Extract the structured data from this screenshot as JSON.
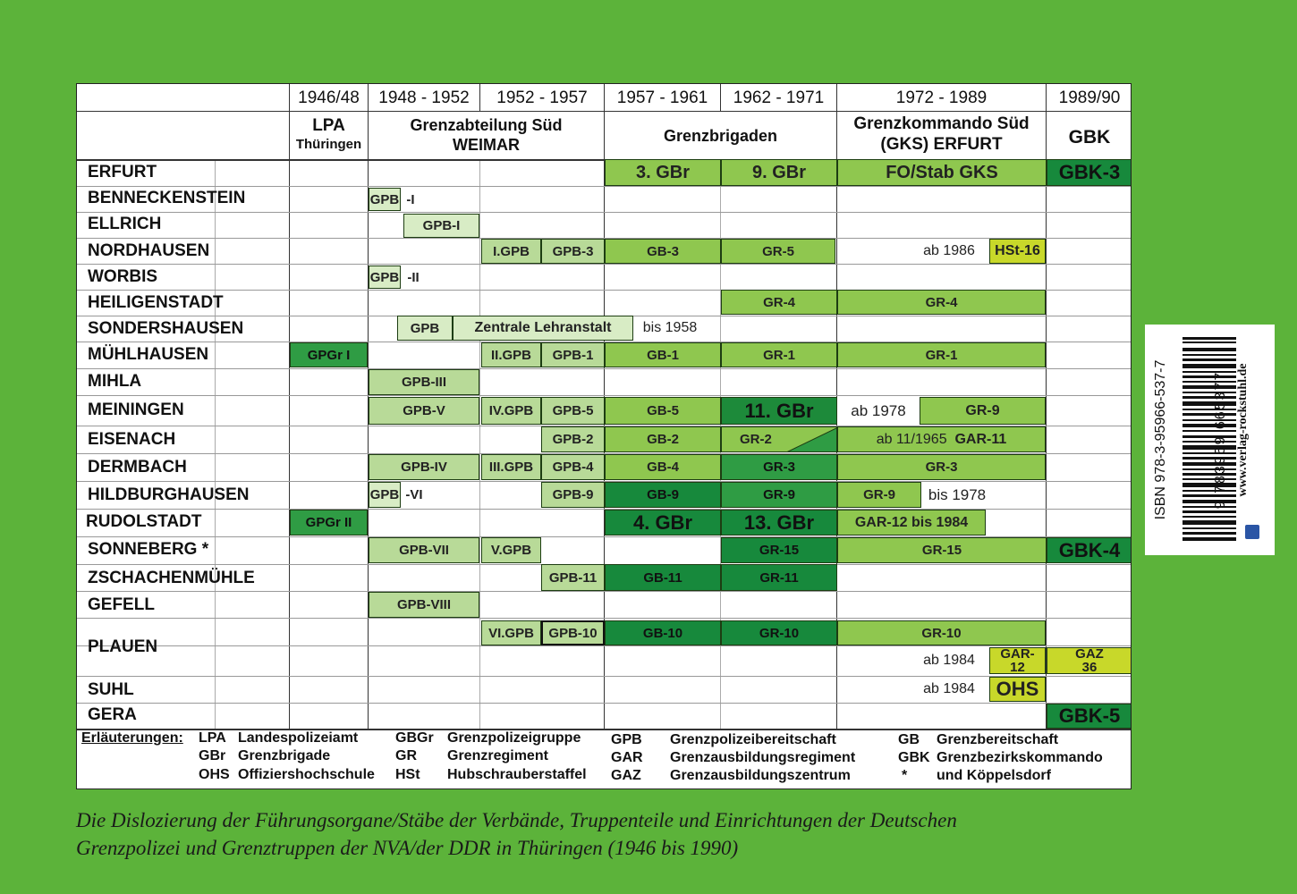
{
  "periods": [
    "1946/48",
    "1948 - 1952",
    "1952 - 1957",
    "1957 - 1961",
    "1962 - 1971",
    "1972 - 1989",
    "1989/90"
  ],
  "units": {
    "lpa": [
      "LPA",
      "Thüringen"
    ],
    "grenzabteilung": [
      "Grenzabteilung Süd",
      "WEIMAR"
    ],
    "grenzbrigaden": "Grenzbrigaden",
    "gks": [
      "Grenzkommando Süd",
      "(GKS) ERFURT"
    ],
    "gbk": "GBK"
  },
  "places": [
    "ERFURT",
    "BENNECKENSTEIN",
    "ELLRICH",
    "NORDHAUSEN",
    "WORBIS",
    "HEILIGENSTADT",
    "SONDERSHAUSEN",
    "MÜHLHAUSEN",
    "MIHLA",
    "MEININGEN",
    "EISENACH",
    "DERMBACH",
    "HILDBURGHAUSEN",
    "RUDOLSTADT",
    "SONNEBERG *",
    "ZSCHACHENMÜHLE",
    "GEFELL",
    "PLAUEN",
    "SUHL",
    "GERA"
  ],
  "cells": {
    "erfurt": [
      "3. GBr",
      "9. GBr",
      "FO/Stab GKS",
      "GBK-3"
    ],
    "benneckenstein": [
      "GPB",
      "-I"
    ],
    "ellrich": [
      "GPB-I"
    ],
    "nordhausen": [
      "I.GPB",
      "GPB-3",
      "GB-3",
      "GR-5",
      "ab 1986",
      "HSt-16"
    ],
    "worbis": [
      "GPB",
      "-II"
    ],
    "heiligenstadt": [
      "GR-4",
      "GR-4"
    ],
    "sondershausen": [
      "GPB",
      "Zentrale Lehranstalt",
      "bis 1958"
    ],
    "muehlhausen": [
      "GPGr I",
      "II.GPB",
      "GPB-1",
      "GB-1",
      "GR-1",
      "GR-1"
    ],
    "mihla": [
      "GPB-III"
    ],
    "meiningen": [
      "GPB-V",
      "IV.GPB",
      "GPB-5",
      "GB-5",
      "11. GBr",
      "ab 1978",
      "GR-9"
    ],
    "eisenach": [
      "GPB-2",
      "GB-2",
      "GR-2",
      "ab 11/1965",
      "GAR-11"
    ],
    "dermbach": [
      "GPB-IV",
      "III.GPB",
      "GPB-4",
      "GB-4",
      "GR-3",
      "GR-3"
    ],
    "hildburghausen": [
      "GPB",
      "-VI",
      "GPB-9",
      "GB-9",
      "GR-9",
      "GR-9",
      "bis 1978"
    ],
    "rudolstadt": [
      "GPGr II",
      "4. GBr",
      "13. GBr",
      "GAR-12 bis 1984"
    ],
    "sonneberg": [
      "GPB-VII",
      "V.GPB",
      "GR-15",
      "GR-15",
      "GBK-4"
    ],
    "zschachenmuehle": [
      "GPB-11",
      "GB-11",
      "GR-11"
    ],
    "gefell": [
      "GPB-VIII"
    ],
    "plauen": [
      "VI.GPB",
      "GPB-10",
      "GB-10",
      "GR-10",
      "GR-10",
      "ab 1984",
      "GAR-",
      "12",
      "GAZ",
      "36"
    ],
    "suhl": [
      "ab 1984",
      "OHS"
    ],
    "gera": [
      "GBK-5"
    ]
  },
  "legend": {
    "title": "Erläuterungen:",
    "col1": [
      [
        "LPA",
        "Landespolizeiamt"
      ],
      [
        "GBr",
        "Grenzbrigade"
      ],
      [
        "OHS",
        "Offiziershochschule"
      ]
    ],
    "col2": [
      [
        "GBGr",
        "Grenzpolizeigruppe"
      ],
      [
        "GR",
        "Grenzregiment"
      ],
      [
        "HSt",
        "Hubschrauberstaffel"
      ]
    ],
    "col3": [
      [
        "GPB",
        "Grenzpolizeibereitschaft"
      ],
      [
        "GAR",
        "Grenzausbildungsregiment"
      ],
      [
        "GAZ",
        "Grenzausbildungszentrum"
      ]
    ],
    "col4": [
      [
        "GB",
        "Grenzbereitschaft"
      ],
      [
        "GBK",
        "Grenzbezirkskommando"
      ],
      [
        "*",
        "und Köppelsdorf"
      ]
    ]
  },
  "caption": [
    "Die Dislozierung der Führungsorgane/Stäbe der Verbände, Truppenteile und Einrichtungen der Deutschen",
    "Grenzpolizei und Grenztruppen der NVA/der DDR in Thüringen (1946 bis 1990)"
  ],
  "isbn": {
    "text": "ISBN 978-3-95966-537-7",
    "digits": "9 783959 665377",
    "url": "www.verlag-rockstuhl.de"
  },
  "colors": {
    "background": "#5cb33a",
    "light": "#d8ecc5",
    "medium": "#8fc74f",
    "dark": "#17893c",
    "yellow": "#c8d82a"
  }
}
